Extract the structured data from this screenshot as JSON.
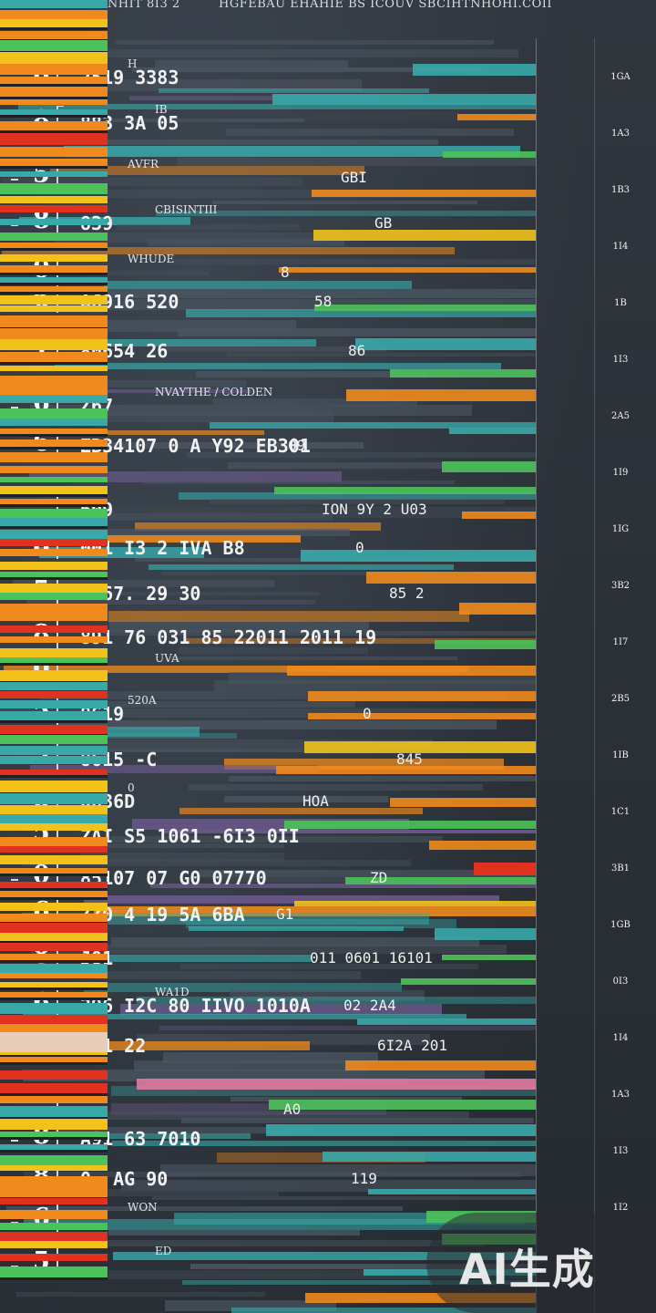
{
  "header": {
    "left": "ANHIT 8I3 2",
    "right": "HGFEBAU EHAHIE BS ICOUV SBCIHTNHOHI.COII"
  },
  "rows": [
    {
      "digit": "8",
      "value": "2519 3383",
      "note": "H",
      "mid": ""
    },
    {
      "digit": "8",
      "value": "883 3A 05",
      "note": "IB",
      "mid": ""
    },
    {
      "digit": "5",
      "value": "",
      "note": "AVFR",
      "mid": "GBI"
    },
    {
      "digit": "8",
      "value": "839",
      "note": "CBISINTIII",
      "mid": "GB"
    },
    {
      "digit": "0",
      "value": "",
      "note": "WHUDE",
      "mid": "8"
    },
    {
      "digit": "6",
      "value": "A6916 520",
      "note": "",
      "mid": "58"
    },
    {
      "digit": "1",
      "value": "80654 26",
      "note": "",
      "mid": "86"
    },
    {
      "digit": "6",
      "value": "Z67",
      "note": "NVAYTHE / COLDEN",
      "mid": ""
    },
    {
      "digit": "6",
      "value": "ZB34107 0 A Y92 EB301",
      "note": "",
      "mid": "09"
    },
    {
      "digit": "",
      "value": "609",
      "note": "",
      "mid": "ION 9Y 2 U03"
    },
    {
      "digit": "8",
      "value": "001 I3 2 IVA B8",
      "note": "",
      "mid": "0"
    },
    {
      "digit": "5",
      "value": "A467. 29 30",
      "note": "",
      "mid": "85 2"
    },
    {
      "digit": "8",
      "value": "891 76 031 85 22011 2011 19",
      "note": "",
      "mid": ""
    },
    {
      "digit": "0",
      "value": "",
      "note": "UVA",
      "mid": ""
    },
    {
      "digit": "5",
      "value": "8619",
      "note": "520A",
      "mid": "0"
    },
    {
      "digit": "5",
      "value": "8615 -C",
      "note": "",
      "mid": "845"
    },
    {
      "digit": "8",
      "value": "0636D",
      "note": "0",
      "mid": "HOA"
    },
    {
      "digit": "5",
      "value": "ZAI S5 1061 -6I3 0II",
      "note": "",
      "mid": ""
    },
    {
      "digit": "0",
      "value": "85107 07 G0 07770",
      "note": "",
      "mid": "ZD"
    },
    {
      "digit": "6",
      "value": "ZZ0 4 19 5A 6BA",
      "note": "",
      "mid": "G1"
    },
    {
      "digit": "8",
      "value": "J01",
      "note": "",
      "mid": "011 0601 16101"
    },
    {
      "digit": "6",
      "value": "396 I2C 80 IIVO 1010A",
      "note": "WA1D",
      "mid": "02 2A4"
    },
    {
      "digit": "8",
      "value": "A91 22",
      "note": "",
      "mid": "6I2A 201"
    },
    {
      "digit": "",
      "value": "",
      "note": "",
      "mid": "A0"
    },
    {
      "digit": "8",
      "value": "A91 63 7010",
      "note": "",
      "mid": ""
    },
    {
      "digit": "8",
      "value": "0-  AG 90",
      "note": "",
      "mid": "119"
    },
    {
      "digit": "6",
      "value": "",
      "note": "WON",
      "mid": ""
    },
    {
      "digit": "5",
      "value": "",
      "note": "ED",
      "mid": ""
    }
  ],
  "right_labels": [
    "1GA",
    "1A3",
    "1B3",
    "1I4",
    "1B",
    "1I3",
    "2A5",
    "1I9",
    "1IG",
    "3B2",
    "1I7",
    "2B5",
    "1IB",
    "1C1",
    "3B1",
    "1GB",
    "0I3",
    "1I4",
    "1A3",
    "1I3",
    "1I2"
  ],
  "colors": {
    "orange": "#f08a1c",
    "yellow": "#f2c21b",
    "teal": "#38a8a8",
    "green": "#4cc25a",
    "red": "#e0321e",
    "pink": "#e27aa0",
    "purple": "#6d5a8e",
    "slate": "#4a5560"
  },
  "watermark": {
    "text": "AI生成"
  }
}
